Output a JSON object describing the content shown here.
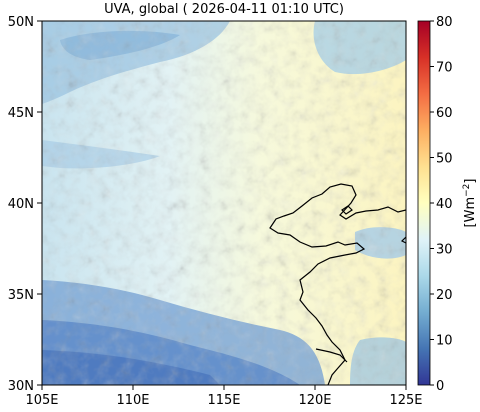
{
  "title": "UVA, global ( 2026-04-11 01:10 UTC)",
  "map": {
    "lon_range": [
      105,
      125
    ],
    "lat_range": [
      30,
      50
    ],
    "x_ticks": [
      "105E",
      "110E",
      "115E",
      "120E",
      "125E"
    ],
    "y_ticks": [
      "30N",
      "35N",
      "40N",
      "45N",
      "50N"
    ]
  },
  "colorbar": {
    "label_base": "[Wm",
    "label_exp": "−2",
    "label_close": "]",
    "ticks": [
      "0",
      "10",
      "20",
      "30",
      "40",
      "50",
      "60",
      "70",
      "80"
    ],
    "range": [
      0,
      80
    ],
    "colormap": "RdYlBu_r",
    "colors": [
      "#313695",
      "#4575b4",
      "#74add1",
      "#abd9e9",
      "#e0f3f8",
      "#ffffbf",
      "#fee090",
      "#fdae61",
      "#f46d43",
      "#d73027",
      "#a50026"
    ]
  }
}
